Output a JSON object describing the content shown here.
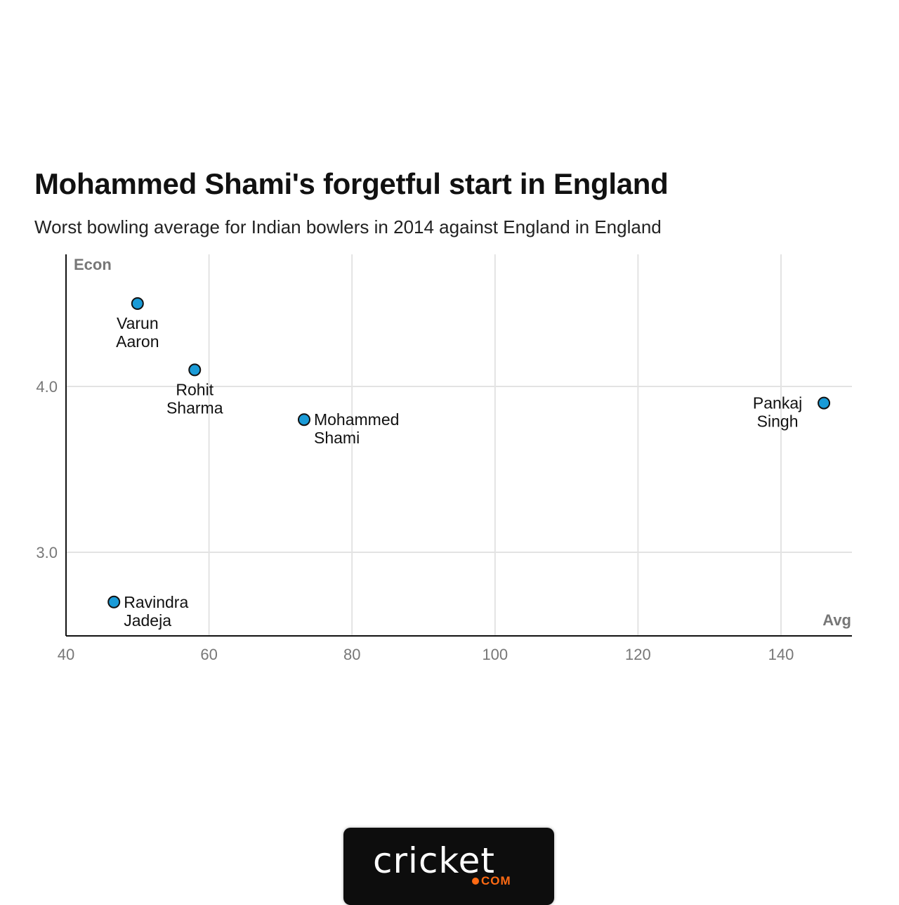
{
  "chart_data": {
    "type": "scatter",
    "title": "Mohammed Shami's forgetful start in England",
    "subtitle": "Worst bowling average for Indian bowlers in 2014 against England in England",
    "xlabel": "Avg",
    "ylabel": "Econ",
    "xlim": [
      40,
      150
    ],
    "ylim": [
      2.5,
      4.8
    ],
    "xticks": [
      40,
      60,
      80,
      100,
      120,
      140
    ],
    "yticks": [
      3.0,
      4.0
    ],
    "ytick_labels": [
      "3.0",
      "4.0"
    ],
    "grid": true,
    "point_color": "#1a9bd7",
    "points": [
      {
        "label_lines": [
          "Varun",
          "Aaron"
        ],
        "x": 50.0,
        "y": 4.5,
        "label_pos": "below"
      },
      {
        "label_lines": [
          "Rohit",
          "Sharma"
        ],
        "x": 58.0,
        "y": 4.1,
        "label_pos": "below"
      },
      {
        "label_lines": [
          "Mohammed",
          "Shami"
        ],
        "x": 73.3,
        "y": 3.8,
        "label_pos": "right"
      },
      {
        "label_lines": [
          "Pankaj",
          "Singh"
        ],
        "x": 146.0,
        "y": 3.9,
        "label_pos": "left"
      },
      {
        "label_lines": [
          "Ravindra",
          "Jadeja"
        ],
        "x": 46.7,
        "y": 2.7,
        "label_pos": "right"
      }
    ]
  },
  "branding": {
    "logo_word": "cricket",
    "logo_sub": "COM",
    "accent_color": "#ff6a13"
  }
}
